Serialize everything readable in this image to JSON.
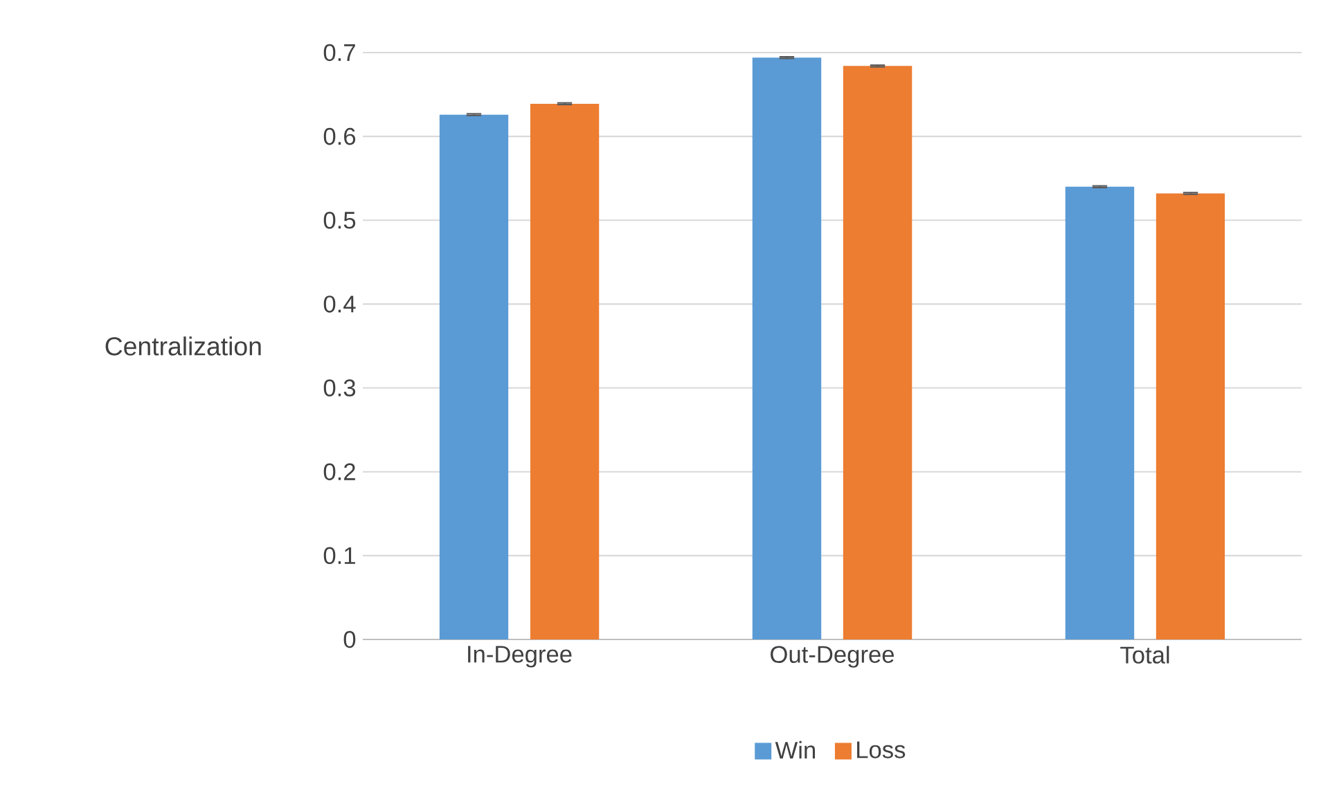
{
  "chart_data": {
    "type": "bar",
    "ylabel": "Centralization",
    "categories": [
      "In-Degree",
      "Out-Degree",
      "Total"
    ],
    "series": [
      {
        "name": "Win",
        "color": "#5b9bd5",
        "values": [
          0.626,
          0.694,
          0.54
        ],
        "errors": [
          0.001,
          0.001,
          0.001
        ]
      },
      {
        "name": "Loss",
        "color": "#ed7d31",
        "values": [
          0.639,
          0.684,
          0.532
        ],
        "errors": [
          0.001,
          0.001,
          0.001
        ]
      }
    ],
    "ylim": [
      0,
      0.7
    ],
    "yticks": [
      0,
      0.1,
      0.2,
      0.3,
      0.4,
      0.5,
      0.6,
      0.7
    ],
    "grid": "y",
    "legend": "bottom"
  }
}
